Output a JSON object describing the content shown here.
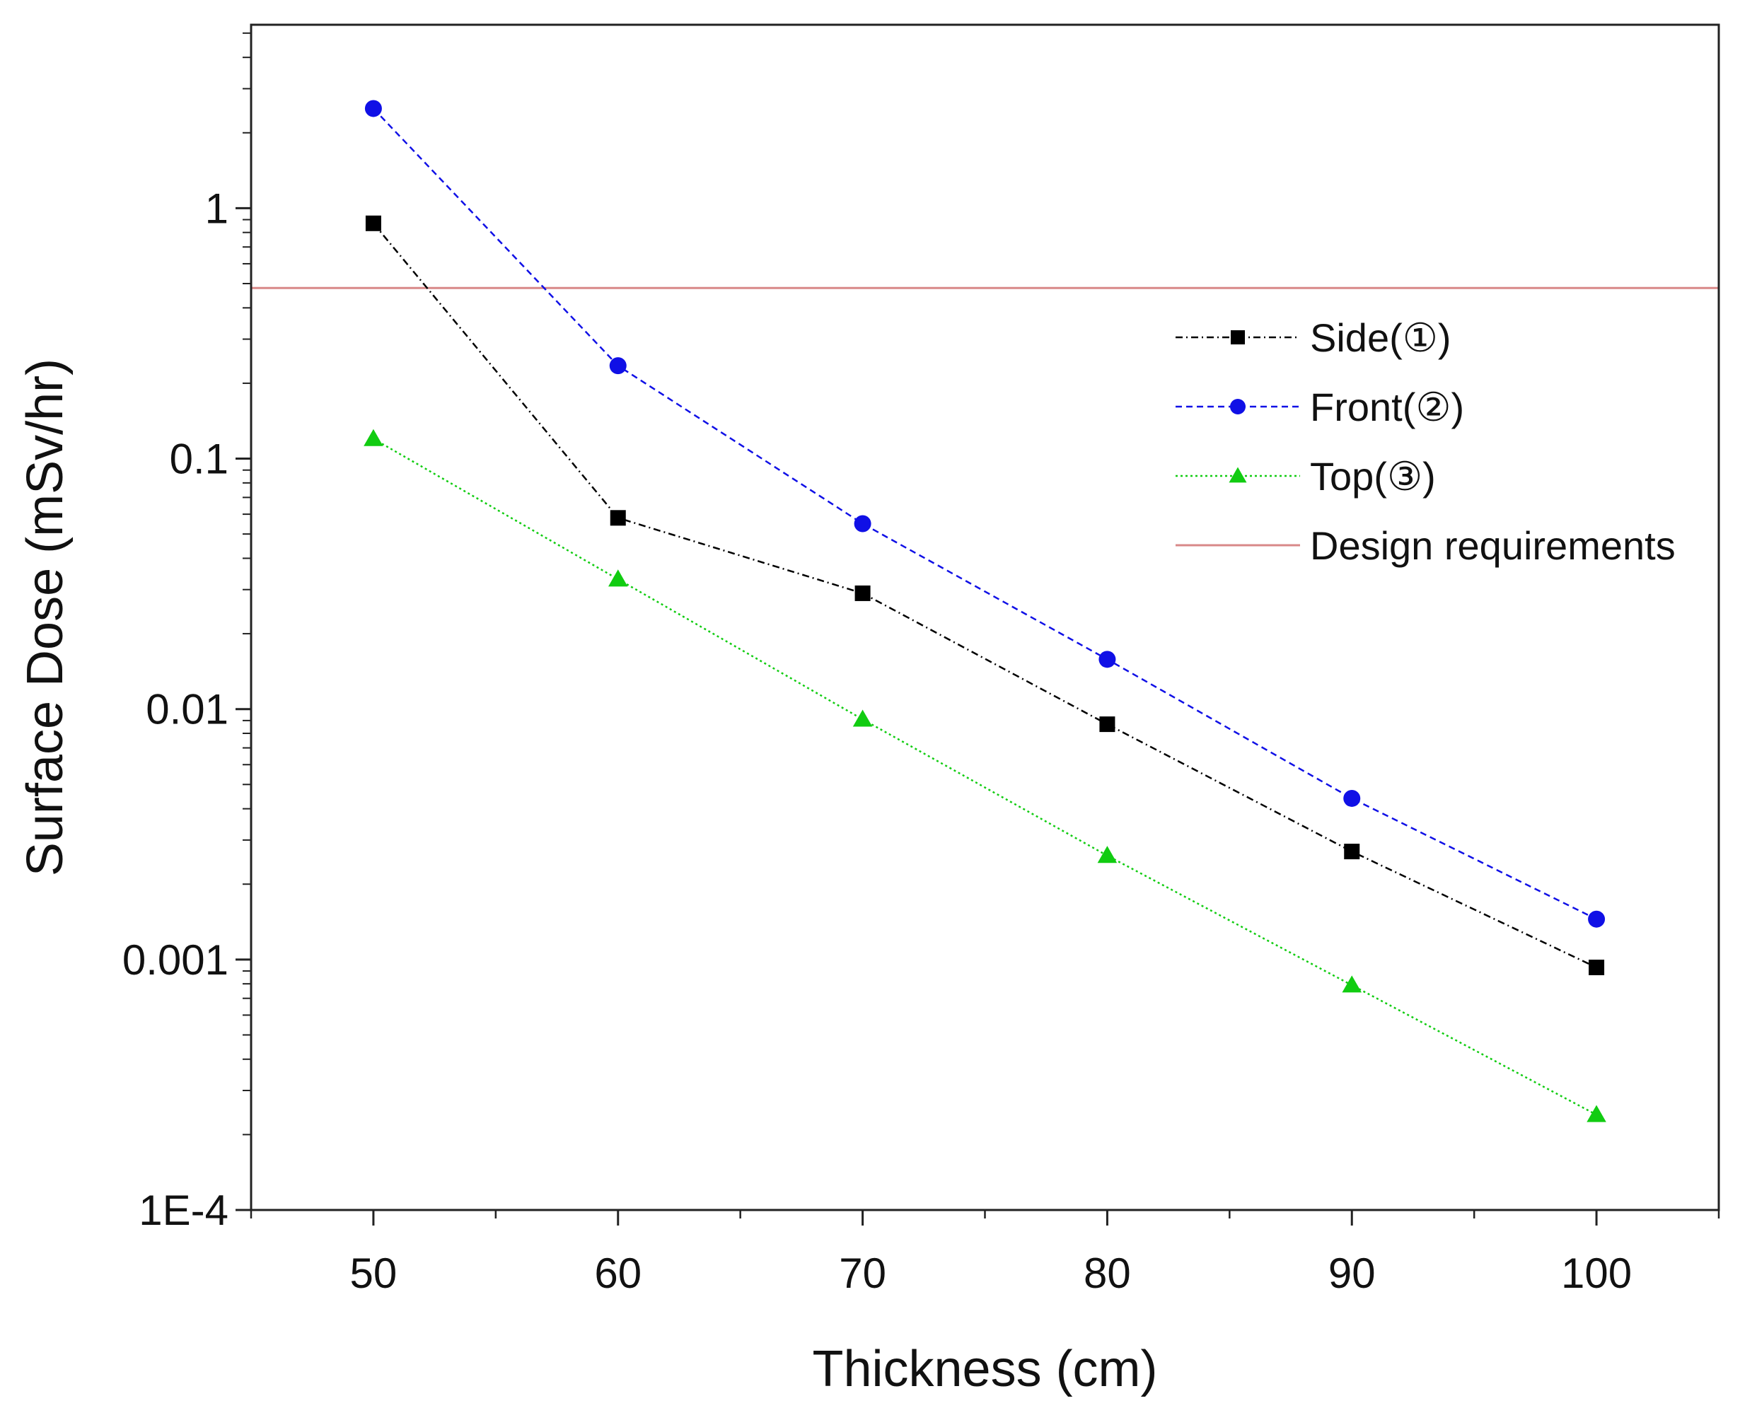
{
  "chart_data": {
    "type": "line",
    "title": "",
    "xlabel": "Thickness (cm)",
    "ylabel": "Surface Dose (mSv/hr)",
    "xlim": [
      45,
      105
    ],
    "ylim": [
      0.0001,
      5.4
    ],
    "yscale": "log",
    "grid": false,
    "legend_position": "right",
    "x": [
      50,
      60,
      70,
      80,
      90,
      100
    ],
    "x_ticks": [
      {
        "value": 50,
        "label": "50"
      },
      {
        "value": 60,
        "label": "60"
      },
      {
        "value": 70,
        "label": "70"
      },
      {
        "value": 80,
        "label": "80"
      },
      {
        "value": 90,
        "label": "90"
      },
      {
        "value": 100,
        "label": "100"
      }
    ],
    "y_ticks": [
      {
        "value": 0.0001,
        "label": "1E-4"
      },
      {
        "value": 0.001,
        "label": "0.001"
      },
      {
        "value": 0.01,
        "label": "0.01"
      },
      {
        "value": 0.1,
        "label": "0.1"
      },
      {
        "value": 1,
        "label": "1"
      }
    ],
    "series": [
      {
        "name": "Side(①)",
        "color": "#000000",
        "marker": "square",
        "line_style": "dash-dot",
        "values": [
          0.87,
          0.058,
          0.029,
          0.0087,
          0.0027,
          0.00093
        ]
      },
      {
        "name": "Front(②)",
        "color": "#1010e6",
        "marker": "circle",
        "line_style": "dashed",
        "values": [
          2.5,
          0.235,
          0.055,
          0.0158,
          0.0044,
          0.00145
        ]
      },
      {
        "name": "Top(③)",
        "color": "#11cc11",
        "marker": "triangle",
        "line_style": "dotted",
        "values": [
          0.12,
          0.033,
          0.0091,
          0.0026,
          0.00079,
          0.00024
        ]
      }
    ],
    "reference_lines": [
      {
        "name": "Design requirements",
        "color": "#d88888",
        "value": 0.48
      }
    ]
  }
}
